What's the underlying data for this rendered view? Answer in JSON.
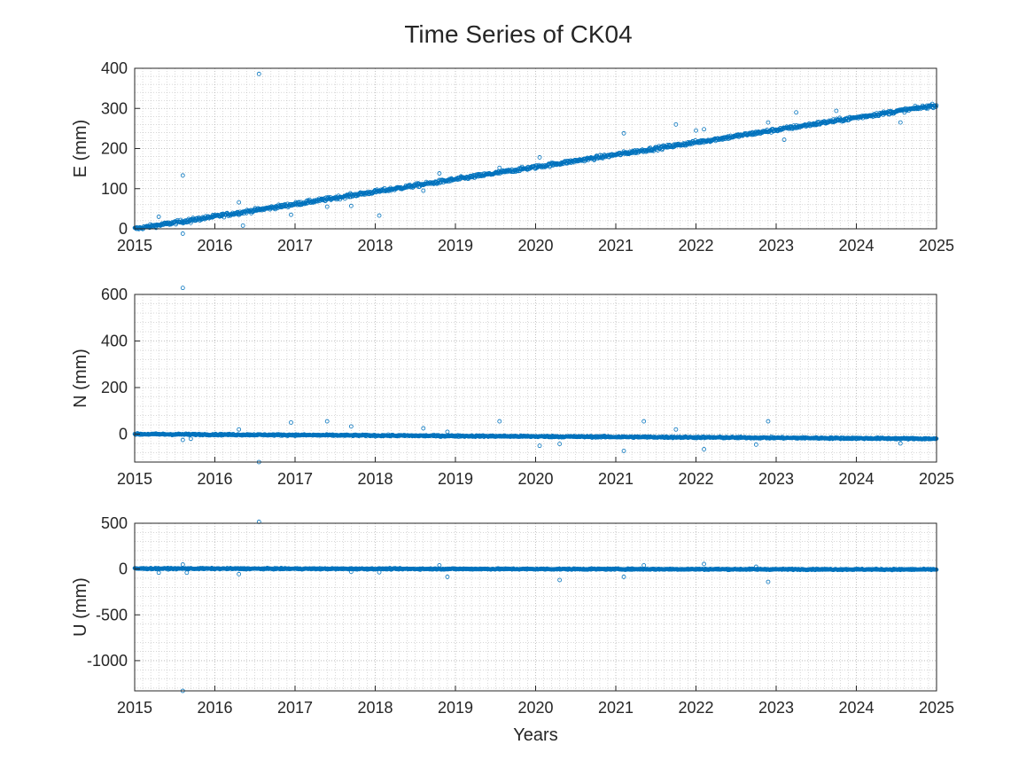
{
  "figure": {
    "title": "Time Series of CK04"
  },
  "colors": {
    "marker": "#0072BD",
    "axis": "#262626",
    "grid": "#b0b0b0",
    "background": "#ffffff"
  },
  "chart_data": [
    {
      "type": "scatter",
      "id": "east",
      "ylabel": "E (mm)",
      "xlabel": "",
      "xlim": [
        2015,
        2025
      ],
      "ylim": [
        0,
        400
      ],
      "xticks": [
        2015,
        2016,
        2017,
        2018,
        2019,
        2020,
        2021,
        2022,
        2023,
        2024,
        2025
      ],
      "yticks": [
        0,
        100,
        200,
        300,
        400
      ],
      "grid": true,
      "minor_grid": true,
      "series": [
        {
          "marker": "open-circle",
          "trend": {
            "x": [
              2015,
              2025
            ],
            "y": [
              0,
              308
            ]
          },
          "scatter_mm": 4,
          "outliers": [
            {
              "x": 2015.3,
              "y": 30
            },
            {
              "x": 2015.6,
              "y": 133
            },
            {
              "x": 2015.6,
              "y": -12
            },
            {
              "x": 2015.7,
              "y": 15
            },
            {
              "x": 2016.3,
              "y": 66
            },
            {
              "x": 2016.35,
              "y": 8
            },
            {
              "x": 2016.55,
              "y": 386
            },
            {
              "x": 2016.95,
              "y": 35
            },
            {
              "x": 2017.4,
              "y": 55
            },
            {
              "x": 2017.7,
              "y": 57
            },
            {
              "x": 2018.05,
              "y": 33
            },
            {
              "x": 2018.6,
              "y": 95
            },
            {
              "x": 2018.8,
              "y": 138
            },
            {
              "x": 2019.55,
              "y": 152
            },
            {
              "x": 2020.05,
              "y": 178
            },
            {
              "x": 2021.1,
              "y": 238
            },
            {
              "x": 2021.75,
              "y": 260
            },
            {
              "x": 2022.0,
              "y": 245
            },
            {
              "x": 2022.1,
              "y": 248
            },
            {
              "x": 2022.9,
              "y": 265
            },
            {
              "x": 2023.1,
              "y": 222
            },
            {
              "x": 2023.25,
              "y": 290
            },
            {
              "x": 2023.75,
              "y": 294
            },
            {
              "x": 2024.55,
              "y": 265
            }
          ]
        }
      ]
    },
    {
      "type": "scatter",
      "id": "north",
      "ylabel": "N (mm)",
      "xlabel": "",
      "xlim": [
        2015,
        2025
      ],
      "ylim": [
        -120,
        600
      ],
      "xticks": [
        2015,
        2016,
        2017,
        2018,
        2019,
        2020,
        2021,
        2022,
        2023,
        2024,
        2025
      ],
      "yticks": [
        0,
        200,
        400,
        600
      ],
      "grid": true,
      "minor_grid": true,
      "series": [
        {
          "marker": "open-circle",
          "trend": {
            "x": [
              2015,
              2025
            ],
            "y": [
              0,
              -20
            ]
          },
          "scatter_mm": 3,
          "outliers": [
            {
              "x": 2015.6,
              "y": 628
            },
            {
              "x": 2015.6,
              "y": -25
            },
            {
              "x": 2015.7,
              "y": -20
            },
            {
              "x": 2016.3,
              "y": 20
            },
            {
              "x": 2016.55,
              "y": -120
            },
            {
              "x": 2016.95,
              "y": 50
            },
            {
              "x": 2017.4,
              "y": 55
            },
            {
              "x": 2017.7,
              "y": 33
            },
            {
              "x": 2018.6,
              "y": 25
            },
            {
              "x": 2018.9,
              "y": 10
            },
            {
              "x": 2019.55,
              "y": 55
            },
            {
              "x": 2020.05,
              "y": -50
            },
            {
              "x": 2020.3,
              "y": -42
            },
            {
              "x": 2021.1,
              "y": -72
            },
            {
              "x": 2021.35,
              "y": 55
            },
            {
              "x": 2021.75,
              "y": 20
            },
            {
              "x": 2022.1,
              "y": -65
            },
            {
              "x": 2022.75,
              "y": -45
            },
            {
              "x": 2022.9,
              "y": 55
            },
            {
              "x": 2024.55,
              "y": -40
            }
          ]
        }
      ]
    },
    {
      "type": "scatter",
      "id": "up",
      "ylabel": "U (mm)",
      "xlabel": "Years",
      "xlim": [
        2015,
        2025
      ],
      "ylim": [
        -1330,
        500
      ],
      "xticks": [
        2015,
        2016,
        2017,
        2018,
        2019,
        2020,
        2021,
        2022,
        2023,
        2024,
        2025
      ],
      "yticks": [
        -1000,
        -500,
        0,
        500
      ],
      "grid": true,
      "minor_grid": true,
      "series": [
        {
          "marker": "open-circle",
          "trend": {
            "x": [
              2015,
              2025
            ],
            "y": [
              5,
              -5
            ]
          },
          "scatter_mm": 6,
          "outliers": [
            {
              "x": 2015.3,
              "y": -40
            },
            {
              "x": 2015.6,
              "y": 50
            },
            {
              "x": 2015.6,
              "y": -1330
            },
            {
              "x": 2015.65,
              "y": -40
            },
            {
              "x": 2016.3,
              "y": -55
            },
            {
              "x": 2016.55,
              "y": 515
            },
            {
              "x": 2017.7,
              "y": -30
            },
            {
              "x": 2018.05,
              "y": -35
            },
            {
              "x": 2018.8,
              "y": 40
            },
            {
              "x": 2018.9,
              "y": -85
            },
            {
              "x": 2020.3,
              "y": -120
            },
            {
              "x": 2021.1,
              "y": -85
            },
            {
              "x": 2021.35,
              "y": 40
            },
            {
              "x": 2022.1,
              "y": 55
            },
            {
              "x": 2022.9,
              "y": -140
            },
            {
              "x": 2022.75,
              "y": 25
            },
            {
              "x": 2024.55,
              "y": -10
            }
          ]
        }
      ]
    }
  ]
}
